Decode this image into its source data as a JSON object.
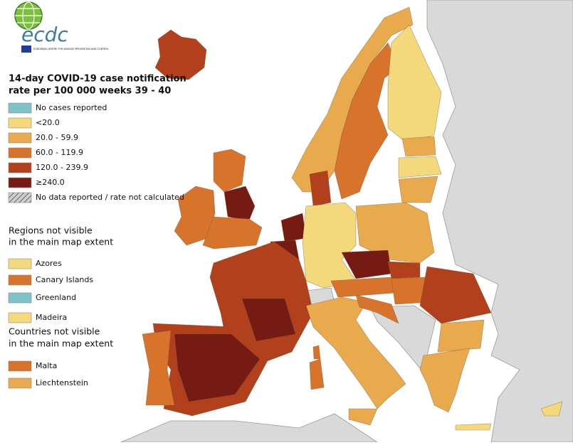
{
  "logo": {
    "name": "ecdc",
    "subtitle": "EUROPEAN CENTRE FOR DISEASE PREVENTION AND CONTROL"
  },
  "title": [
    "14-day COVID-19 case notification",
    "rate per 100 000 weeks 39 - 40"
  ],
  "legend": {
    "items": [
      {
        "label": "No cases reported",
        "color": "#7fc3c8"
      },
      {
        "label": "<20.0",
        "color": "#f4d97c"
      },
      {
        "label": "20.0 - 59.9",
        "color": "#e8aa4c"
      },
      {
        "label": "60.0 - 119.9",
        "color": "#d8732c"
      },
      {
        "label": "120.0 - 239.9",
        "color": "#b2401c"
      },
      {
        "label": "≥240.0",
        "color": "#761a14"
      },
      {
        "label": "No data reported / rate not calculated",
        "color": "#9a9a9a",
        "pattern": "hatch"
      }
    ]
  },
  "regions": {
    "heading": [
      "Regions not visible",
      "in the main map extent"
    ],
    "items": [
      {
        "label": "Azores",
        "color": "#f4d97c"
      },
      {
        "label": "Canary Islands",
        "color": "#d8732c"
      },
      {
        "label": "Greenland",
        "color": "#7fc3c8"
      },
      {
        "label": "Madeira",
        "color": "#f4d97c"
      }
    ]
  },
  "countries": {
    "heading": [
      "Countries not visible",
      "in the main map extent"
    ],
    "items": [
      {
        "label": "Malta",
        "color": "#d8732c"
      },
      {
        "label": "Liechtenstein",
        "color": "#e8aa4c"
      }
    ]
  }
}
